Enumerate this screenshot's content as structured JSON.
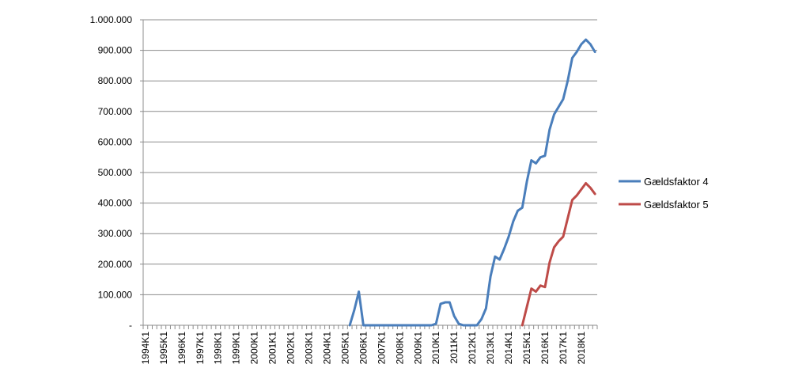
{
  "chart_data": {
    "type": "line",
    "title": "",
    "xlabel": "",
    "ylabel": "",
    "ylim": [
      0,
      1000000
    ],
    "yticks": [
      0,
      100000,
      200000,
      300000,
      400000,
      500000,
      600000,
      700000,
      800000,
      900000,
      1000000
    ],
    "ytick_labels": [
      "-",
      "100.000",
      "200.000",
      "300.000",
      "400.000",
      "500.000",
      "600.000",
      "700.000",
      "800.000",
      "900.000",
      "1.000.000"
    ],
    "grid": "horizontal",
    "legend_position": "right",
    "x_start": "1994K1",
    "x_end": "2018K4",
    "x_period": "quarterly",
    "x_tick_labels": [
      "1994K1",
      "1995K1",
      "1996K1",
      "1997K1",
      "1998K1",
      "1999K1",
      "2000K1",
      "2001K1",
      "2002K1",
      "2003K1",
      "2004K1",
      "2005K1",
      "2006K1",
      "2007K1",
      "2008K1",
      "2009K1",
      "2010K1",
      "2011K1",
      "2012K1",
      "2013K1",
      "2014K1",
      "2015K1",
      "2016K1",
      "2017K1",
      "2018K1"
    ],
    "series": [
      {
        "name": "Gældsfaktor 4",
        "color": "#4a7ebb",
        "points": [
          [
            "2005K2",
            0
          ],
          [
            "2005K3",
            50000
          ],
          [
            "2005K4",
            110000
          ],
          [
            "2006K1",
            0
          ],
          [
            "2009K4",
            0
          ],
          [
            "2010K1",
            5000
          ],
          [
            "2010K2",
            70000
          ],
          [
            "2010K3",
            75000
          ],
          [
            "2010K4",
            75000
          ],
          [
            "2011K1",
            30000
          ],
          [
            "2011K2",
            5000
          ],
          [
            "2011K3",
            0
          ],
          [
            "2011K4",
            0
          ],
          [
            "2012K1",
            0
          ],
          [
            "2012K2",
            0
          ],
          [
            "2012K3",
            20000
          ],
          [
            "2012K4",
            55000
          ],
          [
            "2013K1",
            160000
          ],
          [
            "2013K2",
            225000
          ],
          [
            "2013K3",
            215000
          ],
          [
            "2013K4",
            250000
          ],
          [
            "2014K1",
            290000
          ],
          [
            "2014K2",
            340000
          ],
          [
            "2014K3",
            375000
          ],
          [
            "2014K4",
            385000
          ],
          [
            "2015K1",
            470000
          ],
          [
            "2015K2",
            540000
          ],
          [
            "2015K3",
            530000
          ],
          [
            "2015K4",
            550000
          ],
          [
            "2016K1",
            555000
          ],
          [
            "2016K2",
            640000
          ],
          [
            "2016K3",
            690000
          ],
          [
            "2016K4",
            715000
          ],
          [
            "2017K1",
            740000
          ],
          [
            "2017K2",
            800000
          ],
          [
            "2017K3",
            875000
          ],
          [
            "2017K4",
            895000
          ],
          [
            "2018K1",
            920000
          ],
          [
            "2018K2",
            935000
          ],
          [
            "2018K3",
            920000
          ],
          [
            "2018K4",
            895000
          ]
        ]
      },
      {
        "name": "Gældsfaktor 5",
        "color": "#be4b48",
        "points": [
          [
            "2014K4",
            0
          ],
          [
            "2015K1",
            60000
          ],
          [
            "2015K2",
            120000
          ],
          [
            "2015K3",
            110000
          ],
          [
            "2015K4",
            130000
          ],
          [
            "2016K1",
            125000
          ],
          [
            "2016K2",
            205000
          ],
          [
            "2016K3",
            255000
          ],
          [
            "2016K4",
            275000
          ],
          [
            "2017K1",
            290000
          ],
          [
            "2017K2",
            350000
          ],
          [
            "2017K3",
            410000
          ],
          [
            "2017K4",
            425000
          ],
          [
            "2018K1",
            445000
          ],
          [
            "2018K2",
            465000
          ],
          [
            "2018K3",
            450000
          ],
          [
            "2018K4",
            430000
          ]
        ]
      }
    ]
  }
}
